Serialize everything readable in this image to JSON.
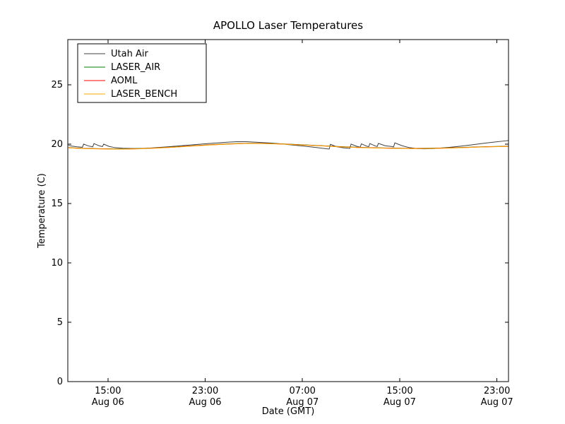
{
  "figure": {
    "background": "#ffffff",
    "axes_edge_color": "#000000"
  },
  "chart_data": {
    "type": "line",
    "title": "APOLLO Laser Temperatures",
    "xlabel": "Date (GMT)",
    "ylabel": "Temperature (C)",
    "grid": false,
    "legend": {
      "position": "upper left",
      "entries": [
        "Utah Air",
        "LASER_AIR",
        "AOML",
        "LASER_BENCH"
      ]
    },
    "ylim": [
      0,
      28.8
    ],
    "yticks": [
      0,
      5,
      10,
      15,
      20,
      25
    ],
    "xlim_hours": [
      11.7,
      47.95
    ],
    "xticks": [
      {
        "hour": 15,
        "time": "15:00",
        "date": "Aug 06"
      },
      {
        "hour": 23,
        "time": "23:00",
        "date": "Aug 06"
      },
      {
        "hour": 31,
        "time": "07:00",
        "date": "Aug 07"
      },
      {
        "hour": 39,
        "time": "15:00",
        "date": "Aug 07"
      },
      {
        "hour": 47,
        "time": "23:00",
        "date": "Aug 07"
      }
    ],
    "series": [
      {
        "name": "Utah Air",
        "color": "#404040",
        "points": [
          [
            11.75,
            19.9
          ],
          [
            12.0,
            19.84
          ],
          [
            12.4,
            19.78
          ],
          [
            12.9,
            19.73
          ],
          [
            13.0,
            20.0
          ],
          [
            13.4,
            19.84
          ],
          [
            13.75,
            19.77
          ],
          [
            13.85,
            20.04
          ],
          [
            14.3,
            19.85
          ],
          [
            14.55,
            19.79
          ],
          [
            14.65,
            20.0
          ],
          [
            15.1,
            19.8
          ],
          [
            15.6,
            19.7
          ],
          [
            16.2,
            19.65
          ],
          [
            17.0,
            19.63
          ],
          [
            18.0,
            19.64
          ],
          [
            19.0,
            19.7
          ],
          [
            20.0,
            19.78
          ],
          [
            21.0,
            19.86
          ],
          [
            22.0,
            19.94
          ],
          [
            23.0,
            20.02
          ],
          [
            24.0,
            20.1
          ],
          [
            24.8,
            20.16
          ],
          [
            25.6,
            20.2
          ],
          [
            26.4,
            20.2
          ],
          [
            27.2,
            20.16
          ],
          [
            28.2,
            20.1
          ],
          [
            29.2,
            20.02
          ],
          [
            30.2,
            19.92
          ],
          [
            31.2,
            19.82
          ],
          [
            32.2,
            19.7
          ],
          [
            33.2,
            19.58
          ],
          [
            33.3,
            19.98
          ],
          [
            33.8,
            19.78
          ],
          [
            34.4,
            19.68
          ],
          [
            34.9,
            19.64
          ],
          [
            35.0,
            20.0
          ],
          [
            35.5,
            19.8
          ],
          [
            35.75,
            19.74
          ],
          [
            35.85,
            20.02
          ],
          [
            36.3,
            19.82
          ],
          [
            36.45,
            19.78
          ],
          [
            36.55,
            20.04
          ],
          [
            37.0,
            19.84
          ],
          [
            37.15,
            19.8
          ],
          [
            37.25,
            20.06
          ],
          [
            37.8,
            19.86
          ],
          [
            38.3,
            19.8
          ],
          [
            38.5,
            19.76
          ],
          [
            38.6,
            20.1
          ],
          [
            39.2,
            19.86
          ],
          [
            39.8,
            19.7
          ],
          [
            40.4,
            19.62
          ],
          [
            41.0,
            19.6
          ],
          [
            41.8,
            19.62
          ],
          [
            42.8,
            19.7
          ],
          [
            43.8,
            19.8
          ],
          [
            44.8,
            19.92
          ],
          [
            45.8,
            20.05
          ],
          [
            46.8,
            20.17
          ],
          [
            47.5,
            20.25
          ],
          [
            47.95,
            20.3
          ]
        ]
      },
      {
        "name": "LASER_AIR",
        "color": "#008000",
        "points": [
          [
            11.75,
            19.7
          ],
          [
            13,
            19.64
          ],
          [
            14.5,
            19.61
          ],
          [
            16,
            19.59
          ],
          [
            17.5,
            19.62
          ],
          [
            19,
            19.68
          ],
          [
            20.5,
            19.76
          ],
          [
            22,
            19.86
          ],
          [
            23.5,
            19.95
          ],
          [
            25,
            20.02
          ],
          [
            26.5,
            20.07
          ],
          [
            28,
            20.06
          ],
          [
            29.5,
            20.01
          ],
          [
            31,
            19.94
          ],
          [
            32.5,
            19.87
          ],
          [
            34,
            19.79
          ],
          [
            35.5,
            19.73
          ],
          [
            37,
            19.69
          ],
          [
            38.5,
            19.66
          ],
          [
            40,
            19.64
          ],
          [
            41.5,
            19.65
          ],
          [
            43,
            19.68
          ],
          [
            44.5,
            19.73
          ],
          [
            46,
            19.78
          ],
          [
            47.95,
            19.82
          ]
        ]
      },
      {
        "name": "AOML",
        "color": "#ff0000",
        "points": [
          [
            11.75,
            19.69
          ],
          [
            13,
            19.63
          ],
          [
            14.5,
            19.6
          ],
          [
            16,
            19.58
          ],
          [
            17.5,
            19.61
          ],
          [
            19,
            19.67
          ],
          [
            20.5,
            19.75
          ],
          [
            22,
            19.85
          ],
          [
            23.5,
            19.94
          ],
          [
            25,
            20.01
          ],
          [
            26.5,
            20.06
          ],
          [
            28,
            20.05
          ],
          [
            29.5,
            20.0
          ],
          [
            31,
            19.93
          ],
          [
            32.5,
            19.86
          ],
          [
            34,
            19.78
          ],
          [
            35.5,
            19.72
          ],
          [
            37,
            19.68
          ],
          [
            38.5,
            19.65
          ],
          [
            40,
            19.63
          ],
          [
            41.5,
            19.64
          ],
          [
            43,
            19.67
          ],
          [
            44.5,
            19.72
          ],
          [
            46,
            19.77
          ],
          [
            47.95,
            19.81
          ]
        ]
      },
      {
        "name": "LASER_BENCH",
        "color": "#ffa500",
        "points": [
          [
            11.75,
            19.68
          ],
          [
            13,
            19.62
          ],
          [
            14.5,
            19.59
          ],
          [
            16,
            19.57
          ],
          [
            17.5,
            19.6
          ],
          [
            19,
            19.66
          ],
          [
            20.5,
            19.74
          ],
          [
            22,
            19.84
          ],
          [
            23.5,
            19.93
          ],
          [
            25,
            20.0
          ],
          [
            26.5,
            20.05
          ],
          [
            28,
            20.04
          ],
          [
            29.5,
            19.99
          ],
          [
            31,
            19.92
          ],
          [
            32.5,
            19.85
          ],
          [
            34,
            19.77
          ],
          [
            35.5,
            19.71
          ],
          [
            37,
            19.67
          ],
          [
            38.5,
            19.64
          ],
          [
            40,
            19.62
          ],
          [
            41.5,
            19.63
          ],
          [
            43,
            19.66
          ],
          [
            44.5,
            19.71
          ],
          [
            46,
            19.76
          ],
          [
            47.95,
            19.8
          ]
        ]
      }
    ]
  }
}
